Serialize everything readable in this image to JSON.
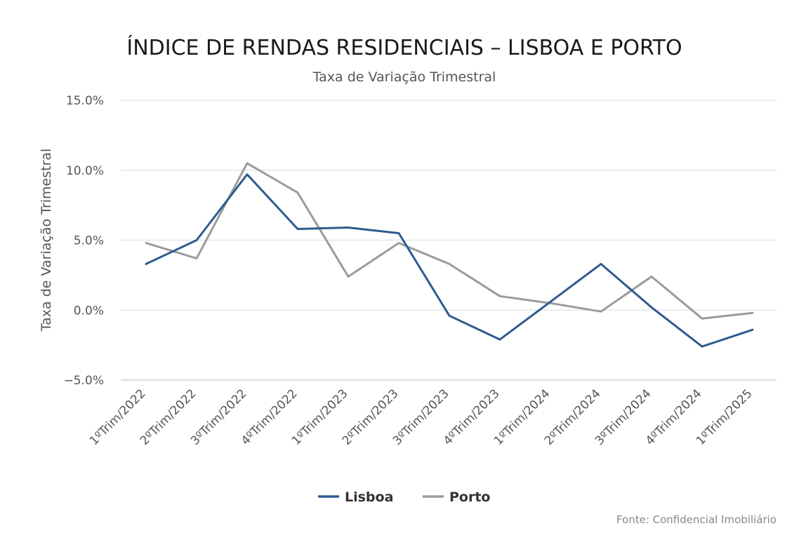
{
  "chart_data": {
    "type": "line",
    "title": "ÍNDICE DE RENDAS RESIDENCIAIS – LISBOA E PORTO",
    "subtitle": "Taxa de Variação Trimestral",
    "ylabel": "Taxa de Variação Trimestral",
    "xlabel": "",
    "categories": [
      "1ºTrim/2022",
      "2ºTrim/2022",
      "3ºTrim/2022",
      "4ºTrim/2022",
      "1ºTrim/2023",
      "2ºTrim/2023",
      "3ºTrim/2023",
      "4ºTrim/2023",
      "1ºTrim/2024",
      "2ºTrim/2024",
      "3ºTrim/2024",
      "4ºTrim/2024",
      "1ºTrim/2025"
    ],
    "ylim": [
      -5,
      15
    ],
    "yticks": [
      15,
      10,
      5,
      0,
      -5
    ],
    "ytick_labels": [
      "15.0%",
      "10.0%",
      "5.0%",
      "0.0%",
      "−5.0%"
    ],
    "grid": true,
    "legend_position": "bottom-center",
    "series": [
      {
        "name": "Lisboa",
        "color": "#2e5b8f",
        "values": [
          3.3,
          5.0,
          9.7,
          5.8,
          5.9,
          5.5,
          -0.4,
          -2.1,
          0.6,
          3.3,
          0.2,
          -2.6,
          -1.4
        ]
      },
      {
        "name": "Porto",
        "color": "#9b9b9b",
        "values": [
          4.8,
          3.7,
          10.5,
          8.4,
          2.4,
          4.8,
          3.3,
          1.0,
          0.5,
          -0.1,
          2.4,
          -0.6,
          -0.2
        ]
      }
    ],
    "source": "Fonte: Confidencial Imobiliário"
  }
}
